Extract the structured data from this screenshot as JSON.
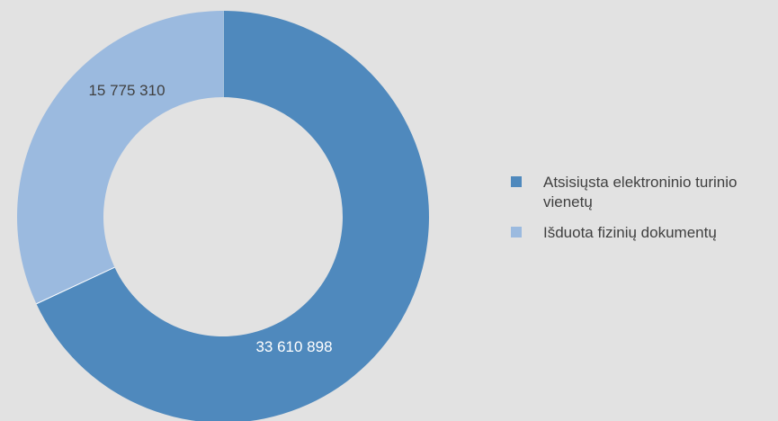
{
  "chart_data": {
    "type": "pie",
    "variant": "doughnut",
    "categories": [
      "Atsisiųsta elektroninio turinio vienetų",
      "Išduota fizinių dokumentų"
    ],
    "values": [
      33610898,
      15775310
    ],
    "data_labels": [
      "33 610 898",
      "15 775 310"
    ],
    "colors": [
      "#4f89bd",
      "#9bbadf"
    ],
    "label_colors": [
      "#ffffff",
      "#404040"
    ],
    "legend_position": "right"
  },
  "legend": {
    "items": [
      {
        "label": "Atsisiųsta elektroninio turinio vienetų",
        "color": "#4f89bd"
      },
      {
        "label": "Išduota fizinių dokumentų",
        "color": "#9bbadf"
      }
    ]
  },
  "background_color": "#e2e2e2"
}
